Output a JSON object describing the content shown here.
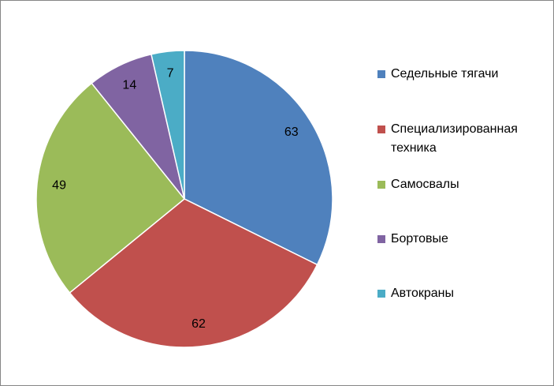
{
  "chart_data": {
    "type": "pie",
    "categories": [
      "Седельные тягачи",
      "Специализированная техника",
      "Самосвалы",
      "Бортовые",
      "Автокраны"
    ],
    "values": [
      63,
      62,
      49,
      14,
      7
    ],
    "colors": [
      "#4f81bd",
      "#c0504d",
      "#9bbb59",
      "#8064a2",
      "#4bacc6"
    ],
    "legend": "right"
  }
}
